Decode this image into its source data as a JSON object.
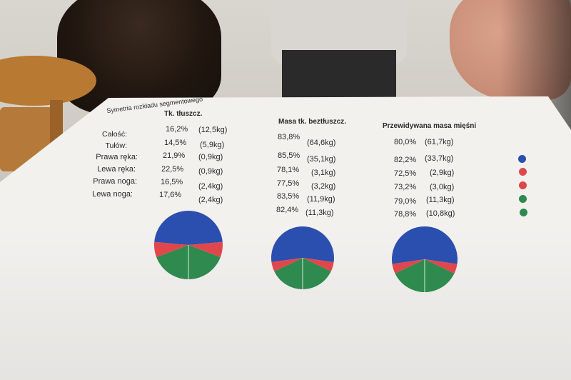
{
  "doc": {
    "title": "Symetria rozkładu segmentowego",
    "col_fat": "Tk. tłuszcz.",
    "col_lean": "Masa tk. beztłuszcz.",
    "col_muscle": "Przewidywana masa mięśni"
  },
  "rows": [
    {
      "label": "Całość:",
      "fat_pct": "16,2%",
      "fat_kg": "(12,5kg)",
      "lean_pct": "83,8%",
      "lean_kg": "(64,6kg)",
      "mus_pct": "80,0%",
      "mus_kg": "(61,7kg)"
    },
    {
      "label": "Tułów:",
      "fat_pct": "14,5%",
      "fat_kg": "(5,9kg)",
      "lean_pct": "85,5%",
      "lean_kg": "(35,1kg)",
      "mus_pct": "82,2%",
      "mus_kg": "(33,7kg)"
    },
    {
      "label": "Prawa ręka:",
      "fat_pct": "21,9%",
      "fat_kg": "(0,9kg)",
      "lean_pct": "78,1%",
      "lean_kg": "(3,1kg)",
      "mus_pct": "72,5%",
      "mus_kg": "(2,9kg)"
    },
    {
      "label": "Lewa ręka:",
      "fat_pct": "22,5%",
      "fat_kg": "(0,9kg)",
      "lean_pct": "77,5%",
      "lean_kg": "(3,2kg)",
      "mus_pct": "73,2%",
      "mus_kg": "(3,0kg)"
    },
    {
      "label": "Prawa noga:",
      "fat_pct": "16,5%",
      "fat_kg": "(2,4kg)",
      "lean_pct": "83,5%",
      "lean_kg": "(11,9kg)",
      "mus_pct": "79,0%",
      "mus_kg": "(11,3kg)"
    },
    {
      "label": "Lewa noga:",
      "fat_pct": "17,6%",
      "fat_kg": "(2,4kg)",
      "lean_pct": "82,4%",
      "lean_kg": "(11,3kg)",
      "mus_pct": "78,8%",
      "mus_kg": "(10,8kg)"
    }
  ],
  "legend_colors": [
    "#2b4fae",
    "#e0474c",
    "#e0474c",
    "#2e8a4e",
    "#2e8a4e"
  ],
  "colors": {
    "trunk": "#2b4fae",
    "arms": "#e0474c",
    "legs": "#2e8a4e"
  },
  "pies": [
    {
      "name": "fat",
      "trunk": 5.9,
      "arms": 1.8,
      "legs": 4.8
    },
    {
      "name": "lean",
      "trunk": 35.1,
      "arms": 6.3,
      "legs": 23.2
    },
    {
      "name": "muscle",
      "trunk": 33.7,
      "arms": 5.9,
      "legs": 22.1
    }
  ]
}
